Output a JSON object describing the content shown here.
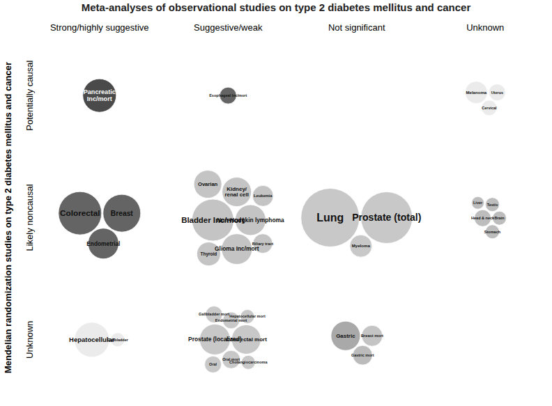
{
  "chart_data": {
    "type": "bubble",
    "title": "Meta-analyses of observational studies on type 2 diabetes mellitus and cancer",
    "y_label": "Mendelian randomization studies on type 2 diabetes mellitus and cancer",
    "columns": [
      "Strong/highly suggestive",
      "Suggestive/weak",
      "Not significant",
      "Unknown"
    ],
    "rows": [
      "Potentially causal",
      "Likely noncausal",
      "Unknown"
    ],
    "bubbles": [
      {
        "label": "Pancreatic\nInc/mort",
        "column": "Strong/highly suggestive",
        "row": "Potentially causal",
        "size": 24,
        "color": "#4a4a4a"
      },
      {
        "label": "Esophageal Inc/mort",
        "column": "Suggestive/weak",
        "row": "Potentially causal",
        "size": 12,
        "color": "#646464"
      },
      {
        "label": "Melanoma",
        "column": "Unknown",
        "row": "Potentially causal",
        "size": 16,
        "color": "#ebebeb"
      },
      {
        "label": "Uterus",
        "column": "Unknown",
        "row": "Potentially causal",
        "size": 12,
        "color": "#ebebeb"
      },
      {
        "label": "Cervical",
        "column": "Unknown",
        "row": "Potentially causal",
        "size": 11,
        "color": "#ebebeb"
      },
      {
        "label": "Colorectal",
        "column": "Strong/highly suggestive",
        "row": "Likely noncausal",
        "size": 31,
        "color": "#646464"
      },
      {
        "label": "Breast",
        "column": "Strong/highly suggestive",
        "row": "Likely noncausal",
        "size": 27,
        "color": "#646464"
      },
      {
        "label": "Endometrial",
        "column": "Strong/highly suggestive",
        "row": "Likely noncausal",
        "size": 22,
        "color": "#646464"
      },
      {
        "label": "Bladder Inc/mort",
        "column": "Suggestive/weak",
        "row": "Likely noncausal",
        "size": 30,
        "color": "#c4c4c4"
      },
      {
        "label": "Non-Hodgkin lymphoma",
        "column": "Suggestive/weak",
        "row": "Likely noncausal",
        "size": 22,
        "color": "#c4c4c4"
      },
      {
        "label": "Glioma Inc/mort",
        "column": "Suggestive/weak",
        "row": "Likely noncausal",
        "size": 22,
        "color": "#c4c4c4"
      },
      {
        "label": "Kidney/\nrenal cell",
        "column": "Suggestive/weak",
        "row": "Likely noncausal",
        "size": 21,
        "color": "#c4c4c4"
      },
      {
        "label": "Ovarian",
        "column": "Suggestive/weak",
        "row": "Likely noncausal",
        "size": 20,
        "color": "#c4c4c4"
      },
      {
        "label": "Thyroid",
        "column": "Suggestive/weak",
        "row": "Likely noncausal",
        "size": 17,
        "color": "#c4c4c4"
      },
      {
        "label": "Leukemia",
        "column": "Suggestive/weak",
        "row": "Likely noncausal",
        "size": 15,
        "color": "#c4c4c4"
      },
      {
        "label": "Biliary tract",
        "column": "Suggestive/weak",
        "row": "Likely noncausal",
        "size": 14,
        "color": "#c4c4c4"
      },
      {
        "label": "Lung",
        "column": "Not significant",
        "row": "Likely noncausal",
        "size": 42,
        "color": "#c8c8c8"
      },
      {
        "label": "Prostate (total)",
        "column": "Not significant",
        "row": "Likely noncausal",
        "size": 37,
        "color": "#c8c8c8"
      },
      {
        "label": "Myeloma",
        "column": "Not significant",
        "row": "Likely noncausal",
        "size": 16,
        "color": "#c8c8c8"
      },
      {
        "label": "Head & neck",
        "column": "Unknown",
        "row": "Likely noncausal",
        "size": 12,
        "color": "#bdbdbd"
      },
      {
        "label": "Brain",
        "column": "Unknown",
        "row": "Likely noncausal",
        "size": 10,
        "color": "#bdbdbd"
      },
      {
        "label": "Stomach",
        "column": "Unknown",
        "row": "Likely noncausal",
        "size": 10,
        "color": "#bdbdbd"
      },
      {
        "label": "Testis",
        "column": "Unknown",
        "row": "Likely noncausal",
        "size": 10,
        "color": "#bdbdbd"
      },
      {
        "label": "Liver",
        "column": "Unknown",
        "row": "Likely noncausal",
        "size": 9,
        "color": "#bdbdbd"
      },
      {
        "label": "Hepatocellular",
        "column": "Strong/highly suggestive",
        "row": "Unknown",
        "size": 25,
        "color": "#ebebeb"
      },
      {
        "label": "Gallbladder",
        "column": "Strong/highly suggestive",
        "row": "Unknown",
        "size": 10,
        "color": "#ebebeb"
      },
      {
        "label": "Prostate (localized)",
        "column": "Suggestive/weak",
        "row": "Unknown",
        "size": 22,
        "color": "#c8c8c8"
      },
      {
        "label": "Colorectal mort",
        "column": "Suggestive/weak",
        "row": "Unknown",
        "size": 21,
        "color": "#c8c8c8"
      },
      {
        "label": "Oral mort",
        "column": "Suggestive/weak",
        "row": "Unknown",
        "size": 13,
        "color": "#c8c8c8"
      },
      {
        "label": "Endometrial mort",
        "column": "Suggestive/weak",
        "row": "Unknown",
        "size": 12,
        "color": "#c8c8c8"
      },
      {
        "label": "Gallbladder mort",
        "column": "Suggestive/weak",
        "row": "Unknown",
        "size": 12,
        "color": "#c8c8c8"
      },
      {
        "label": "Oral",
        "column": "Suggestive/weak",
        "row": "Unknown",
        "size": 12,
        "color": "#c8c8c8"
      },
      {
        "label": "Hepatocellular mort",
        "column": "Suggestive/weak",
        "row": "Unknown",
        "size": 10,
        "color": "#c8c8c8"
      },
      {
        "label": "Cholangiocarcinoma",
        "column": "Suggestive/weak",
        "row": "Unknown",
        "size": 10,
        "color": "#c8c8c8"
      },
      {
        "label": "Gastric",
        "column": "Not significant",
        "row": "Unknown",
        "size": 21,
        "color": "#a9a9a9"
      },
      {
        "label": "Breast mort",
        "column": "Not significant",
        "row": "Unknown",
        "size": 15,
        "color": "#c4c4c4"
      },
      {
        "label": "Gastric mort",
        "column": "Not significant",
        "row": "Unknown",
        "size": 14,
        "color": "#bbbbbb"
      }
    ]
  }
}
